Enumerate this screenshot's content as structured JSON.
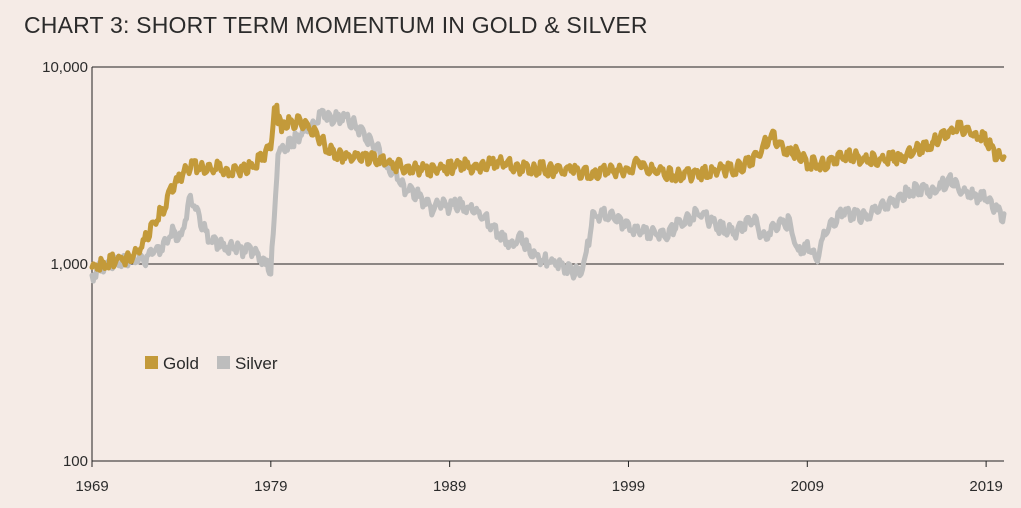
{
  "chart_data": {
    "type": "line",
    "title": "CHART 3: SHORT TERM MOMENTUM IN GOLD & SILVER",
    "xlabel": "",
    "ylabel": "",
    "yscale": "log",
    "ylim": [
      100,
      10000
    ],
    "xlim": [
      1969,
      2020
    ],
    "y_ticks": [
      10000,
      1000,
      100
    ],
    "y_tick_labels": [
      "10,000",
      "1,000",
      "100"
    ],
    "x_ticks": [
      1969,
      1979,
      1989,
      1999,
      2009,
      2019
    ],
    "x_tick_labels": [
      "1969",
      "1979",
      "1989",
      "1999",
      "2009",
      "2019"
    ],
    "grid": "horizontal",
    "legend_position": "left-middle",
    "series": [
      {
        "name": "Gold",
        "color": "#c39a3a",
        "x": [
          1969,
          1969.5,
          1970,
          1971,
          1971.5,
          1972,
          1972.5,
          1973,
          1973.5,
          1974,
          1974.5,
          1975,
          1975.5,
          1976,
          1976.5,
          1977,
          1977.5,
          1978,
          1978.5,
          1979,
          1979.2,
          1979.4,
          1979.6,
          1980,
          1980.5,
          1981,
          1981.5,
          1982,
          1982.5,
          1983,
          1983.5,
          1984,
          1985,
          1986,
          1987,
          1988,
          1988.5,
          1989,
          1990,
          1990.5,
          1991,
          1992,
          1993,
          1993.5,
          1994,
          1995,
          1996,
          1997,
          1998,
          1999,
          1999.5,
          2000,
          2001,
          2002,
          2003,
          2004,
          2005,
          2006,
          2007,
          2007.5,
          2008,
          2008.5,
          2009,
          2010,
          2011,
          2012,
          2013,
          2014,
          2015,
          2016,
          2017,
          2017.5,
          2018,
          2018.5,
          2019,
          2019.5,
          2020
        ],
        "values": [
          1000,
          1050,
          1080,
          1120,
          1200,
          1400,
          1700,
          2000,
          2500,
          2900,
          3300,
          3200,
          3100,
          3300,
          3000,
          3200,
          3100,
          3300,
          3600,
          4000,
          7000,
          5800,
          5200,
          5400,
          5500,
          5200,
          4800,
          4200,
          3800,
          3700,
          3600,
          3700,
          3500,
          3300,
          3200,
          3100,
          3200,
          3200,
          3300,
          3200,
          3300,
          3400,
          3200,
          3100,
          3200,
          3100,
          3100,
          3000,
          3100,
          3100,
          3500,
          3200,
          3000,
          2900,
          3000,
          3100,
          3200,
          3500,
          4700,
          4200,
          3900,
          3800,
          3400,
          3300,
          3700,
          3600,
          3500,
          3600,
          3900,
          4300,
          4800,
          5200,
          5000,
          4700,
          4500,
          3800,
          3500
        ]
      },
      {
        "name": "Silver",
        "color": "#bdbdbd",
        "x": [
          1969,
          1969.5,
          1970,
          1971,
          1971.5,
          1972,
          1972.5,
          1973,
          1973.5,
          1974,
          1974.5,
          1975,
          1975.5,
          1976,
          1977,
          1978,
          1978.5,
          1979,
          1979.2,
          1979.4,
          1979.6,
          1980,
          1980.5,
          1981,
          1981.5,
          1982,
          1982.5,
          1983,
          1983.5,
          1984,
          1984.5,
          1985,
          1985.5,
          1986,
          1986.5,
          1987,
          1988,
          1988.5,
          1989,
          1989.5,
          1990,
          1990.5,
          1991,
          1992,
          1992.5,
          1993,
          1993.5,
          1994,
          1995,
          1995.5,
          1996,
          1996.5,
          1997,
          1998,
          1998.5,
          1999,
          2000,
          2001,
          2002,
          2003,
          2004,
          2005,
          2006,
          2006.5,
          2007,
          2008,
          2008.5,
          2009,
          2009.5,
          2010,
          2011,
          2012,
          2013,
          2014,
          2014.5,
          2015,
          2016,
          2016.5,
          2017,
          2017.5,
          2018,
          2018.5,
          2019,
          2019.5,
          2020
        ],
        "values": [
          900,
          1000,
          1050,
          1080,
          1100,
          1100,
          1200,
          1300,
          1500,
          1400,
          2300,
          1800,
          1400,
          1300,
          1250,
          1200,
          1100,
          950,
          1800,
          3500,
          4000,
          4200,
          4600,
          5000,
          5500,
          6000,
          5700,
          5800,
          5500,
          5000,
          4400,
          4000,
          3200,
          3000,
          2500,
          2400,
          2000,
          2100,
          2000,
          2100,
          2000,
          1900,
          1800,
          1400,
          1300,
          1400,
          1200,
          1100,
          1050,
          1000,
          950,
          1000,
          1800,
          1900,
          1700,
          1600,
          1500,
          1450,
          1700,
          1900,
          1600,
          1500,
          1800,
          1400,
          1600,
          1700,
          1200,
          1300,
          1100,
          1500,
          1900,
          1800,
          2000,
          2200,
          2400,
          2500,
          2400,
          2600,
          2800,
          2500,
          2400,
          2200,
          2300,
          2000,
          1800
        ]
      }
    ]
  }
}
